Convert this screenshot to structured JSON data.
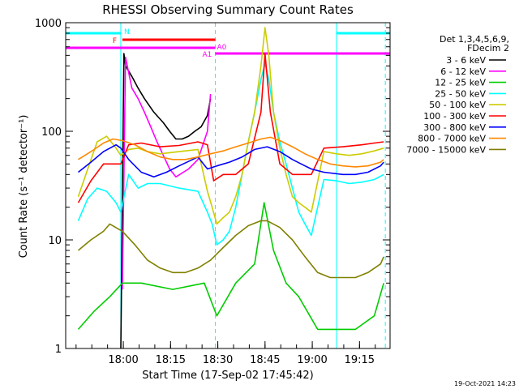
{
  "chart_data": {
    "type": "line",
    "title": "RHESSI Observing Summary Count Rates",
    "xlabel": "Start Time (17-Sep-02 17:45:42)",
    "ylabel": "Count Rate (s⁻¹ detector⁻¹)",
    "footer": "19-Oct-2021 14:23",
    "x_unit": "minutes since 17:45:42",
    "xlim": [
      -4,
      99
    ],
    "ylim": [
      1,
      1000
    ],
    "y_scale": "log",
    "x_ticks": [
      "18:00",
      "18:15",
      "18:30",
      "18:45",
      "19:00",
      "19:15"
    ],
    "x_tick_positions": [
      14.3,
      29.3,
      44.3,
      59.3,
      74.3,
      89.3
    ],
    "y_ticks": [
      "1",
      "10",
      "100",
      "1000"
    ],
    "y_tick_values": [
      1,
      10,
      100,
      1000
    ],
    "legend": {
      "header": [
        "Det 1,3,4,5,6,9,",
        "FDecim 2"
      ],
      "position": "right"
    },
    "series": [
      {
        "name": "3 - 6 keV",
        "color": "#000000",
        "x": [
          13.5,
          14.5,
          15.0,
          17.0,
          19.0,
          21.0,
          24.0,
          27.0,
          29.0,
          31.0,
          33.0,
          35.0,
          37.0,
          39.0,
          41.0,
          42.0
        ],
        "values": [
          1.0,
          520,
          400,
          320,
          250,
          200,
          150,
          120,
          100,
          85,
          85,
          90,
          100,
          110,
          140,
          200
        ]
      },
      {
        "name": "6 - 12 keV",
        "color": "#ff00ff",
        "x": [
          14.0,
          15.0,
          17.0,
          19.0,
          21.0,
          23.0,
          25.0,
          27.0,
          29.0,
          31.0,
          35.0,
          38.0,
          41.0,
          42.0
        ],
        "values": [
          3.5,
          480,
          250,
          200,
          150,
          110,
          80,
          60,
          45,
          38,
          45,
          55,
          100,
          220
        ]
      },
      {
        "name": "12 - 25 keV",
        "color": "#00cc00",
        "x": [
          0,
          5,
          10,
          14,
          20,
          30,
          40,
          44,
          50,
          56,
          59,
          62,
          66,
          70,
          76,
          82,
          88,
          94,
          97
        ],
        "values": [
          1.5,
          2.2,
          3,
          4,
          4,
          3.5,
          4,
          2,
          4,
          6,
          22,
          8,
          4,
          3,
          1.5,
          1.5,
          1.5,
          2,
          4
        ]
      },
      {
        "name": "25 - 50 keV",
        "color": "#00ffff",
        "x": [
          0,
          3,
          6,
          9,
          12,
          13.5,
          16,
          19,
          22,
          26,
          32,
          38,
          41,
          42.5,
          44,
          46,
          48,
          50,
          52,
          54,
          56,
          58,
          59.3,
          60.5,
          62,
          64,
          66,
          68,
          70,
          72,
          74,
          78,
          82,
          86,
          90,
          94,
          97
        ],
        "values": [
          15,
          24,
          30,
          28,
          22,
          18,
          40,
          30,
          33,
          33,
          30,
          28,
          18,
          14,
          9,
          10,
          12,
          20,
          40,
          80,
          150,
          300,
          420,
          300,
          150,
          80,
          50,
          30,
          18,
          14,
          11,
          36,
          35,
          33,
          34,
          36,
          40
        ]
      },
      {
        "name": "50 - 100 keV",
        "color": "#cccc00",
        "x": [
          0,
          3,
          6,
          9,
          12,
          13.5,
          16,
          19,
          22,
          26,
          32,
          38,
          41,
          42.5,
          44,
          46,
          48,
          50,
          52,
          54,
          56,
          58,
          59.3,
          60.5,
          62,
          64,
          66,
          68,
          70,
          72,
          74,
          78,
          82,
          86,
          90,
          94,
          97
        ],
        "values": [
          25,
          45,
          80,
          90,
          70,
          60,
          68,
          70,
          65,
          62,
          65,
          68,
          28,
          20,
          14,
          16,
          18,
          25,
          40,
          80,
          150,
          400,
          900,
          500,
          150,
          70,
          40,
          25,
          22,
          20,
          18,
          65,
          62,
          60,
          62,
          66,
          70
        ]
      },
      {
        "name": "100 - 300 keV",
        "color": "#ff0000",
        "x": [
          0,
          4,
          8,
          12,
          13.5,
          16,
          20,
          26,
          32,
          38,
          41,
          43,
          46,
          50,
          54,
          58,
          59.3,
          61,
          64,
          68,
          72,
          74,
          78,
          84,
          90,
          94,
          97
        ],
        "values": [
          22,
          35,
          50,
          50,
          50,
          75,
          78,
          72,
          74,
          80,
          75,
          35,
          40,
          40,
          50,
          150,
          520,
          150,
          50,
          40,
          40,
          40,
          70,
          72,
          75,
          78,
          80
        ]
      },
      {
        "name": "300 - 800 keV",
        "color": "#0000ff",
        "x": [
          0,
          4,
          8,
          12,
          13.5,
          16,
          20,
          24,
          28,
          32,
          38,
          41,
          44,
          48,
          52,
          56,
          60,
          64,
          68,
          72,
          74,
          78,
          84,
          88,
          92,
          96,
          97
        ],
        "values": [
          42,
          52,
          65,
          75,
          70,
          55,
          42,
          38,
          42,
          48,
          58,
          45,
          48,
          52,
          58,
          68,
          72,
          65,
          55,
          48,
          45,
          42,
          40,
          40,
          42,
          48,
          52
        ]
      },
      {
        "name": "800 - 7000 keV",
        "color": "#ff8800",
        "x": [
          0,
          4,
          8,
          11,
          14,
          18,
          22,
          26,
          30,
          34,
          38,
          42,
          46,
          50,
          54,
          58,
          61,
          64,
          68,
          72,
          76,
          80,
          84,
          88,
          92,
          96,
          97
        ],
        "values": [
          55,
          65,
          78,
          85,
          82,
          75,
          65,
          58,
          55,
          55,
          58,
          62,
          66,
          72,
          78,
          85,
          88,
          82,
          72,
          62,
          55,
          50,
          48,
          47,
          48,
          52,
          55
        ]
      },
      {
        "name": "7000 - 15000 keV",
        "color": "#808000",
        "x": [
          0,
          4,
          8,
          10,
          14,
          18,
          22,
          26,
          30,
          34,
          38,
          42,
          46,
          50,
          54,
          58,
          60,
          64,
          68,
          72,
          76,
          80,
          84,
          88,
          92,
          96,
          97
        ],
        "values": [
          8,
          10,
          12,
          14,
          12,
          9,
          6.5,
          5.5,
          5,
          5,
          5.5,
          6.5,
          8.5,
          11,
          13.5,
          15,
          15,
          13,
          10,
          7,
          5,
          4.5,
          4.5,
          4.5,
          5,
          6,
          7
        ]
      }
    ],
    "flag_lines": {
      "N": {
        "segments": [
          [
            -4,
            13.5
          ],
          [
            82,
            99
          ]
        ],
        "color": "#00ffff"
      },
      "F": {
        "segments": [
          [
            14.0,
            43.5
          ]
        ],
        "color": "#ff0000"
      },
      "A0": {
        "segments": [
          [
            -4,
            43.5
          ]
        ],
        "color": "#ff00ff"
      },
      "A1": {
        "segments": [
          [
            43.5,
            99
          ]
        ],
        "color": "#ff00ff"
      }
    },
    "vertical_markers": {
      "color": "#00ffff",
      "solid": [
        13.5,
        82
      ],
      "dashed": [
        43.5,
        97.5
      ]
    }
  }
}
